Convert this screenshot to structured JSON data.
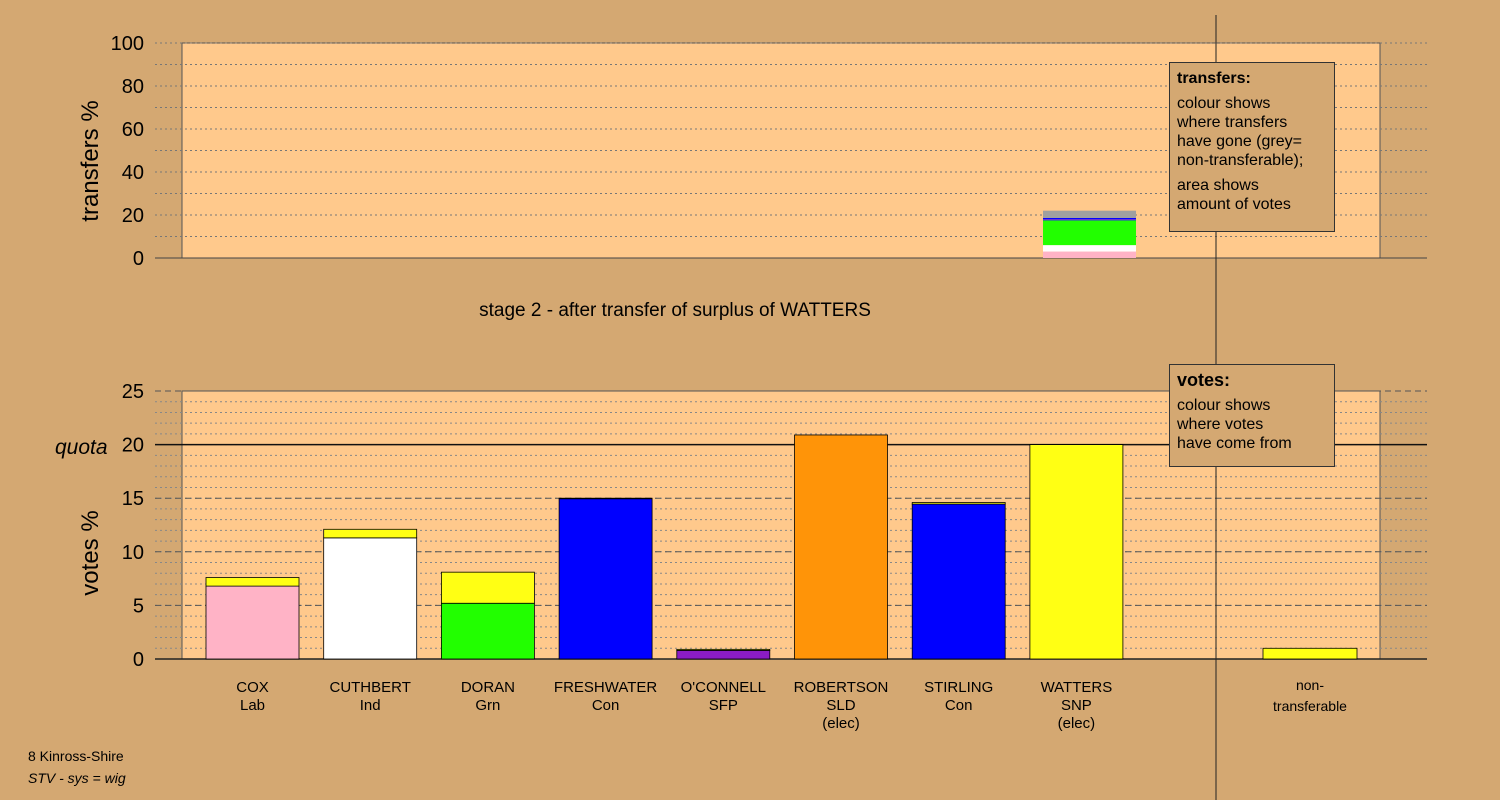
{
  "colors": {
    "background": "#d4a872",
    "plot_bg": "#ffc98c",
    "Lab": "#ffb3c6",
    "Ind": "#ffffff",
    "Grn": "#22ff00",
    "Con": "#0000ff",
    "SFP": "#8a1cc4",
    "SLD": "#ff9408",
    "SNP": "#ffff14",
    "nontransferable": "#a0a0a0"
  },
  "stage_title": "stage 2 - after transfer of surplus of WATTERS",
  "legends": {
    "transfers": {
      "title": "transfers:",
      "lines": [
        "colour shows",
        "where transfers",
        "have gone (grey=",
        "non-transferable);"
      ],
      "lines2": [
        "area shows",
        "amount of votes"
      ]
    },
    "votes": {
      "title": "votes:",
      "lines": [
        "colour shows",
        "where votes",
        "have come from"
      ]
    }
  },
  "footer": {
    "area": "8 Kinross-Shire",
    "method": "STV - sys = wig"
  },
  "chart_data": [
    {
      "type": "bar",
      "ylabel": "transfers %",
      "ylim": [
        0,
        100
      ],
      "yticks": [
        0,
        20,
        40,
        60,
        80,
        100
      ],
      "transfer_from": "WATTERS",
      "segments": [
        {
          "to": "COX",
          "party": "Lab",
          "value": 3.0
        },
        {
          "to": "CUTHBERT",
          "party": "Ind",
          "value": 3.0
        },
        {
          "to": "DORAN",
          "party": "Grn",
          "value": 11.5
        },
        {
          "to": "FRESHWATER",
          "party": "Con",
          "value": 0.3
        },
        {
          "to": "O'CONNELL",
          "party": "SFP",
          "value": 0.2
        },
        {
          "to": "STIRLING",
          "party": "Con",
          "value": 0.6
        },
        {
          "to": "non-transferable",
          "party": "nontransferable",
          "value": 3.4
        }
      ]
    },
    {
      "type": "bar",
      "stacked": true,
      "ylabel": "votes %",
      "ylim": [
        0,
        25
      ],
      "yticks": [
        0,
        5,
        10,
        15,
        20,
        25
      ],
      "quota": 20,
      "quota_label": "quota",
      "categories": [
        {
          "name": "COX",
          "party": "Lab",
          "elected": "",
          "segments": [
            {
              "party": "Lab",
              "value": 6.8
            },
            {
              "party": "SNP",
              "value": 0.8
            }
          ]
        },
        {
          "name": "CUTHBERT",
          "party": "Ind",
          "elected": "",
          "segments": [
            {
              "party": "Ind",
              "value": 11.3
            },
            {
              "party": "SNP",
              "value": 0.8
            }
          ]
        },
        {
          "name": "DORAN",
          "party": "Grn",
          "elected": "",
          "segments": [
            {
              "party": "Grn",
              "value": 5.2
            },
            {
              "party": "SNP",
              "value": 2.9
            }
          ]
        },
        {
          "name": "FRESHWATER",
          "party": "Con",
          "elected": "",
          "segments": [
            {
              "party": "Con",
              "value": 14.95
            },
            {
              "party": "SNP",
              "value": 0.05
            }
          ]
        },
        {
          "name": "O'CONNELL",
          "party": "SFP",
          "elected": "",
          "segments": [
            {
              "party": "SFP",
              "value": 0.8
            },
            {
              "party": "SNP",
              "value": 0.1
            }
          ]
        },
        {
          "name": "ROBERTSON",
          "party": "SLD",
          "elected": "(elec)",
          "segments": [
            {
              "party": "SLD",
              "value": 20.9
            }
          ]
        },
        {
          "name": "STIRLING",
          "party": "Con",
          "elected": "",
          "segments": [
            {
              "party": "Con",
              "value": 14.45
            },
            {
              "party": "SNP",
              "value": 0.15
            }
          ]
        },
        {
          "name": "WATTERS",
          "party": "SNP",
          "elected": "(elec)",
          "segments": [
            {
              "party": "SNP",
              "value": 20.0
            }
          ]
        }
      ],
      "nontransferable": {
        "name": "non-",
        "name2": "transferable",
        "value": 1.0,
        "party": "SNP"
      }
    }
  ]
}
